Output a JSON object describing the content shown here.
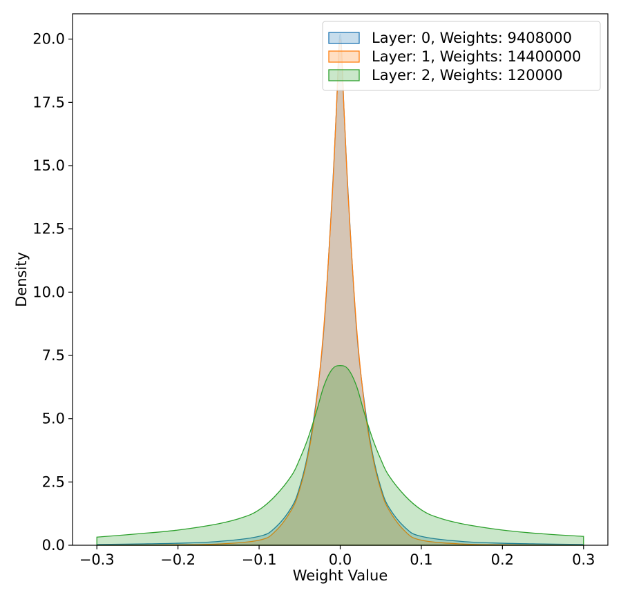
{
  "chart_data": {
    "type": "area",
    "title": "",
    "xlabel": "Weight Value",
    "ylabel": "Density",
    "xlim": [
      -0.33,
      0.33
    ],
    "ylim": [
      0,
      21
    ],
    "xticks": [
      -0.3,
      -0.2,
      -0.1,
      0.0,
      0.1,
      0.2,
      0.3
    ],
    "xtick_labels": [
      "−0.3",
      "−0.2",
      "−0.1",
      "0.0",
      "0.1",
      "0.2",
      "0.3"
    ],
    "yticks": [
      0,
      2.5,
      5,
      7.5,
      10,
      12.5,
      15,
      17.5,
      20
    ],
    "ytick_labels": [
      "0.0",
      "2.5",
      "5.0",
      "7.5",
      "10.0",
      "12.5",
      "15.0",
      "17.5",
      "20.0"
    ],
    "grid": false,
    "legend_position": "top-right",
    "series": [
      {
        "name": "Layer: 0, Weights: 9408000",
        "color": "#1f77b4",
        "fill_opacity": 0.25,
        "x": [
          -0.3,
          -0.25,
          -0.2,
          -0.15,
          -0.1,
          -0.08,
          -0.06,
          -0.05,
          -0.04,
          -0.03,
          -0.02,
          -0.01,
          -0.005,
          0.0,
          0.005,
          0.01,
          0.02,
          0.03,
          0.04,
          0.05,
          0.06,
          0.08,
          0.1,
          0.15,
          0.2,
          0.25,
          0.3
        ],
        "y": [
          0.03,
          0.05,
          0.08,
          0.15,
          0.35,
          0.7,
          1.5,
          2.3,
          3.6,
          5.6,
          8.6,
          13.8,
          17.0,
          20.2,
          17.0,
          13.8,
          8.6,
          5.6,
          3.6,
          2.3,
          1.5,
          0.7,
          0.35,
          0.15,
          0.08,
          0.05,
          0.03
        ]
      },
      {
        "name": "Layer: 1, Weights: 14400000",
        "color": "#ff7f0e",
        "fill_opacity": 0.25,
        "x": [
          -0.3,
          -0.25,
          -0.2,
          -0.15,
          -0.1,
          -0.08,
          -0.06,
          -0.05,
          -0.04,
          -0.03,
          -0.02,
          -0.01,
          -0.005,
          0.0,
          0.005,
          0.01,
          0.02,
          0.03,
          0.04,
          0.05,
          0.06,
          0.08,
          0.1,
          0.15,
          0.2,
          0.25,
          0.3
        ],
        "y": [
          0.0,
          0.01,
          0.02,
          0.05,
          0.2,
          0.55,
          1.4,
          2.2,
          3.5,
          5.5,
          8.7,
          13.7,
          17.0,
          20.0,
          17.0,
          13.7,
          8.7,
          5.5,
          3.5,
          2.2,
          1.4,
          0.55,
          0.2,
          0.05,
          0.02,
          0.01,
          0.0
        ]
      },
      {
        "name": "Layer: 2, Weights: 120000",
        "color": "#2ca02c",
        "fill_opacity": 0.25,
        "x": [
          -0.3,
          -0.25,
          -0.2,
          -0.15,
          -0.12,
          -0.1,
          -0.08,
          -0.06,
          -0.05,
          -0.04,
          -0.03,
          -0.02,
          -0.01,
          0.0,
          0.01,
          0.02,
          0.03,
          0.04,
          0.05,
          0.06,
          0.08,
          0.1,
          0.12,
          0.15,
          0.2,
          0.25,
          0.3
        ],
        "y": [
          0.32,
          0.45,
          0.6,
          0.85,
          1.1,
          1.4,
          1.95,
          2.75,
          3.4,
          4.2,
          5.2,
          6.3,
          6.95,
          7.1,
          6.95,
          6.3,
          5.2,
          4.2,
          3.4,
          2.75,
          1.95,
          1.4,
          1.1,
          0.85,
          0.6,
          0.45,
          0.35
        ]
      }
    ]
  }
}
